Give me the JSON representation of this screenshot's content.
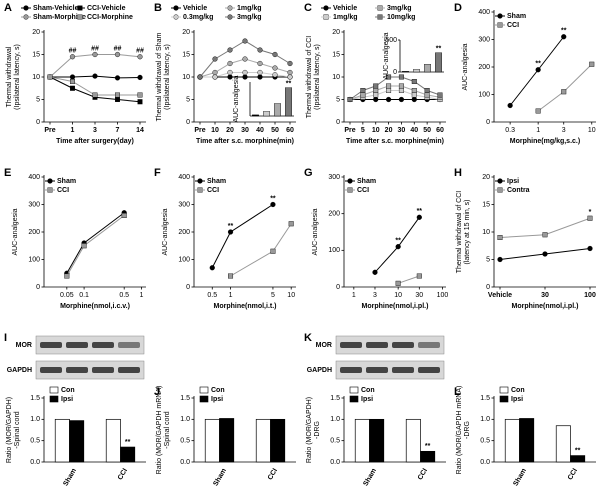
{
  "chart_data": [
    {
      "type": "line",
      "label": "A",
      "ylabel": [
        "Thermal withdrawal",
        "(Ipsilateral latency, s)"
      ],
      "xlabel": "Time after surgery(day)",
      "categories": [
        "Pre",
        "1",
        "3",
        "7",
        "14"
      ],
      "ylim": [
        0,
        20
      ],
      "yticks": [
        0,
        5,
        10,
        15,
        20
      ],
      "series": [
        {
          "name": "Sham-Vehicle",
          "color": "#000000",
          "marker": "circle",
          "values": [
            10,
            10,
            10.2,
            9.8,
            9.9
          ]
        },
        {
          "name": "Sham-Morphine",
          "color": "#999999",
          "marker": "circle",
          "values": [
            10,
            14.5,
            15,
            15,
            14.5
          ]
        },
        {
          "name": "CCI-Vehicle",
          "color": "#000000",
          "marker": "square",
          "values": [
            10,
            7.5,
            5.5,
            5,
            4.5
          ]
        },
        {
          "name": "CCI-Morphine",
          "color": "#999999",
          "marker": "square",
          "values": [
            10,
            9,
            6,
            6,
            6
          ]
        }
      ],
      "annotations": [
        {
          "text": "##",
          "x": "1"
        },
        {
          "text": "##",
          "x": "3"
        },
        {
          "text": "##",
          "x": "7"
        },
        {
          "text": "##",
          "x": "14"
        }
      ]
    },
    {
      "type": "line",
      "label": "B",
      "ylabel": [
        "Thermal withdrawal of Sham",
        "(Ipsilateral latency, s)"
      ],
      "xlabel": "Time after s.c. morphine(min)",
      "categories": [
        "Pre",
        "10",
        "20",
        "30",
        "40",
        "50",
        "60"
      ],
      "ylim": [
        0,
        20
      ],
      "yticks": [
        0,
        5,
        10,
        15,
        20
      ],
      "series": [
        {
          "name": "Vehicle",
          "color": "#000000",
          "marker": "circle",
          "values": [
            10,
            10,
            10,
            10,
            10,
            10,
            10
          ]
        },
        {
          "name": "0.3mg/kg",
          "color": "#cccccc",
          "marker": "circle",
          "values": [
            10,
            10,
            11,
            11,
            11,
            10.5,
            10
          ]
        },
        {
          "name": "1mg/kg",
          "color": "#aaaaaa",
          "marker": "circle",
          "values": [
            10,
            11,
            13,
            14,
            13,
            12,
            11
          ]
        },
        {
          "name": "3mg/kg",
          "color": "#777777",
          "marker": "circle",
          "values": [
            10,
            14,
            16,
            18,
            16,
            15,
            13
          ]
        }
      ],
      "inset": {
        "ylabel": "AUC-analgesia",
        "corner": "bottom-right",
        "ylim": [
          0,
          300
        ],
        "values": [
          10,
          40,
          110,
          250
        ],
        "annotations": [
          {
            "text": "**",
            "bar": "3mg/kg"
          }
        ]
      }
    },
    {
      "type": "line",
      "label": "C",
      "ylabel": [
        "Thermal withdrawal of CCI",
        "(Ipsilateral latency, s)"
      ],
      "xlabel": "Time after s.c. morphine(min)",
      "categories": [
        "Pre",
        "5",
        "10",
        "20",
        "30",
        "40",
        "50",
        "60"
      ],
      "ylim": [
        0,
        20
      ],
      "yticks": [
        0,
        5,
        10,
        15,
        20
      ],
      "series": [
        {
          "name": "Vehicle",
          "color": "#000000",
          "marker": "circle",
          "values": [
            5,
            5,
            5,
            5,
            5,
            5,
            5,
            5
          ]
        },
        {
          "name": "1mg/kg",
          "color": "#cccccc",
          "marker": "square",
          "values": [
            5,
            5.5,
            6,
            7,
            7,
            6,
            5.5,
            5
          ]
        },
        {
          "name": "3mg/kg",
          "color": "#aaaaaa",
          "marker": "square",
          "values": [
            5,
            6,
            7,
            8,
            8,
            7,
            6,
            5.5
          ]
        },
        {
          "name": "10mg/kg",
          "color": "#777777",
          "marker": "square",
          "values": [
            5,
            7,
            8,
            10,
            10,
            9,
            7,
            6
          ]
        }
      ],
      "inset": {
        "ylabel": "AUC-analgesia",
        "corner": "top-right",
        "ylim": [
          0,
          500
        ],
        "yticks": [
          0,
          500
        ],
        "values": [
          10,
          40,
          120,
          300
        ],
        "annotations": [
          {
            "text": "**",
            "bar": "10mg/kg"
          }
        ]
      }
    },
    {
      "type": "line",
      "label": "D",
      "ylabel": [
        "AUC-analgesia"
      ],
      "xlabel": "Morphine(mg/kg,s.c.)",
      "xlog": true,
      "xlim": [
        0.15,
        12
      ],
      "xticks": [
        0.3,
        1,
        3,
        10
      ],
      "ylim": [
        0,
        400
      ],
      "yticks": [
        0,
        100,
        200,
        300,
        400
      ],
      "series": [
        {
          "name": "Sham",
          "color": "#000000",
          "marker": "circle",
          "x": [
            0.3,
            1,
            3
          ],
          "values": [
            60,
            190,
            310
          ]
        },
        {
          "name": "CCI",
          "color": "#999999",
          "marker": "square",
          "x": [
            1,
            3,
            10
          ],
          "values": [
            40,
            110,
            210
          ]
        }
      ],
      "annotations": [
        {
          "text": "**",
          "x": 1
        },
        {
          "text": "**",
          "x": 3
        }
      ]
    },
    {
      "type": "line",
      "label": "E",
      "ylabel": [
        "AUC-analgesia"
      ],
      "xlabel": "Morphine(nmol,i.c.v.)",
      "xlog": true,
      "xlim": [
        0.02,
        1.2
      ],
      "xticks": [
        0.05,
        0.1,
        0.5,
        1
      ],
      "ylim": [
        0,
        400
      ],
      "yticks": [
        0,
        100,
        200,
        300,
        400
      ],
      "series": [
        {
          "name": "Sham",
          "color": "#000000",
          "marker": "circle",
          "x": [
            0.05,
            0.1,
            0.5
          ],
          "values": [
            50,
            160,
            270
          ]
        },
        {
          "name": "CCI",
          "color": "#999999",
          "marker": "square",
          "x": [
            0.05,
            0.1,
            0.5
          ],
          "values": [
            40,
            150,
            260
          ]
        }
      ]
    },
    {
      "type": "line",
      "label": "F",
      "ylabel": [
        "AUC-analgesia"
      ],
      "xlabel": "Morphine(nmol,i.t.)",
      "xlog": true,
      "xlim": [
        0.25,
        12
      ],
      "xticks": [
        0.5,
        1,
        5,
        10
      ],
      "ylim": [
        0,
        400
      ],
      "yticks": [
        0,
        100,
        200,
        300,
        400
      ],
      "series": [
        {
          "name": "Sham",
          "color": "#000000",
          "marker": "circle",
          "x": [
            0.5,
            1,
            5
          ],
          "values": [
            70,
            200,
            300
          ]
        },
        {
          "name": "CCI",
          "color": "#999999",
          "marker": "square",
          "x": [
            1,
            5,
            10
          ],
          "values": [
            40,
            130,
            230
          ]
        }
      ],
      "annotations": [
        {
          "text": "**",
          "x": 1
        },
        {
          "text": "**",
          "x": 5
        }
      ]
    },
    {
      "type": "line",
      "label": "G",
      "ylabel": [
        "AUC-analgesia"
      ],
      "xlabel": "Morphine(nmol,i.pl.)",
      "xlog": true,
      "xlim": [
        0.6,
        120
      ],
      "xticks": [
        1,
        3,
        10,
        30,
        100
      ],
      "ylim": [
        0,
        300
      ],
      "yticks": [
        0,
        100,
        200,
        300
      ],
      "series": [
        {
          "name": "Sham",
          "color": "#000000",
          "marker": "circle",
          "x": [
            3,
            10,
            30
          ],
          "values": [
            40,
            110,
            190
          ]
        },
        {
          "name": "CCI",
          "color": "#999999",
          "marker": "square",
          "x": [
            10,
            30
          ],
          "values": [
            10,
            30
          ]
        }
      ],
      "annotations": [
        {
          "text": "**",
          "x": 10
        },
        {
          "text": "**",
          "x": 30
        }
      ]
    },
    {
      "type": "line",
      "label": "H",
      "ylabel": [
        "Thermal withdrawal of CCI",
        "(latency at 15 min, s)"
      ],
      "xlabel": "Morphine(nmol,i.pl.)",
      "categories": [
        "Vehicle",
        "30",
        "100"
      ],
      "ylim": [
        0,
        20
      ],
      "yticks": [
        0,
        5,
        10,
        15,
        20
      ],
      "series": [
        {
          "name": "Ipsi",
          "color": "#000000",
          "marker": "circle",
          "values": [
            5,
            6,
            7
          ]
        },
        {
          "name": "Contra",
          "color": "#999999",
          "marker": "square",
          "values": [
            9,
            9.5,
            12.5
          ]
        }
      ],
      "annotations": [
        {
          "text": "*",
          "x": "100"
        }
      ]
    },
    {
      "type": "bar",
      "label": "I",
      "blot_labels": [
        "MOR",
        "GAPDH"
      ],
      "ylabel": [
        "Ratio (MOR/GAPDH)",
        "-Spinal cord"
      ],
      "categories": [
        "Sham",
        "CCI"
      ],
      "ylim": [
        0,
        1.5
      ],
      "yticks": [
        {
          "value": 0,
          "label": "0.0"
        },
        {
          "value": 0.5,
          "label": "0.5"
        },
        {
          "value": 1,
          "label": "1.0"
        },
        {
          "value": 1.5,
          "label": "1.5"
        }
      ],
      "series": [
        {
          "name": "Con",
          "color": "#ffffff",
          "values": [
            1,
            1
          ]
        },
        {
          "name": "Ipsi",
          "color": "#000000",
          "values": [
            0.97,
            0.35
          ]
        }
      ],
      "annotations": [
        {
          "text": "**",
          "category": "CCI",
          "series": "Ipsi"
        }
      ]
    },
    {
      "type": "bar",
      "label": "J",
      "ylabel": [
        "Ratio (MOR/GAPDH mRNA)",
        "-Spinal cord"
      ],
      "categories": [
        "Sham",
        "CCI"
      ],
      "ylim": [
        0,
        1.5
      ],
      "yticks": [
        {
          "value": 0,
          "label": "0.0"
        },
        {
          "value": 0.5,
          "label": "0.5"
        },
        {
          "value": 1,
          "label": "1.0"
        },
        {
          "value": 1.5,
          "label": "1.5"
        }
      ],
      "series": [
        {
          "name": "Con",
          "color": "#ffffff",
          "values": [
            1,
            1
          ]
        },
        {
          "name": "Ipsi",
          "color": "#000000",
          "values": [
            1.02,
            1.0
          ]
        }
      ]
    },
    {
      "type": "bar",
      "label": "K",
      "blot_labels": [
        "MOR",
        "GAPDH"
      ],
      "ylabel": [
        "Ratio (MOR/GAPDH)",
        "-DRG"
      ],
      "categories": [
        "Sham",
        "CCI"
      ],
      "ylim": [
        0,
        1.5
      ],
      "yticks": [
        {
          "value": 0,
          "label": "0.0"
        },
        {
          "value": 0.5,
          "label": "0.5"
        },
        {
          "value": 1,
          "label": "1.0"
        },
        {
          "value": 1.5,
          "label": "1.5"
        }
      ],
      "series": [
        {
          "name": "Con",
          "color": "#ffffff",
          "values": [
            1,
            1
          ]
        },
        {
          "name": "Ipsi",
          "color": "#000000",
          "values": [
            1.0,
            0.25
          ]
        }
      ],
      "annotations": [
        {
          "text": "**",
          "category": "CCI",
          "series": "Ipsi"
        }
      ]
    },
    {
      "type": "bar",
      "label": "L",
      "ylabel": [
        "Ratio (MOR/GAPDH mRNA)",
        "-DRG"
      ],
      "categories": [
        "Sham",
        "CCI"
      ],
      "ylim": [
        0,
        1.5
      ],
      "yticks": [
        {
          "value": 0,
          "label": "0.0"
        },
        {
          "value": 0.5,
          "label": "0.5"
        },
        {
          "value": 1,
          "label": "1.0"
        },
        {
          "value": 1.5,
          "label": "1.5"
        }
      ],
      "series": [
        {
          "name": "Con",
          "color": "#ffffff",
          "values": [
            1,
            0.85
          ]
        },
        {
          "name": "Ipsi",
          "color": "#000000",
          "values": [
            1.02,
            0.15
          ]
        }
      ],
      "annotations": [
        {
          "text": "**",
          "category": "CCI",
          "series": "Ipsi"
        }
      ]
    }
  ]
}
